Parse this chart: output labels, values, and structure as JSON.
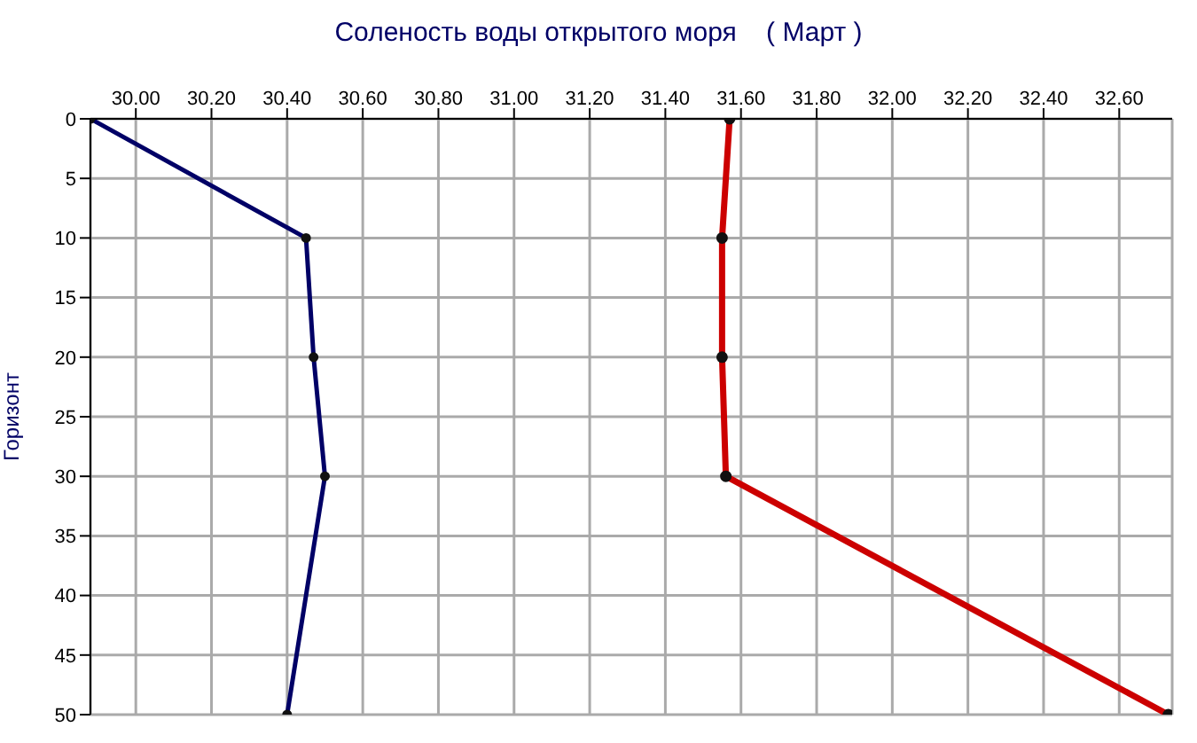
{
  "chart_data": {
    "type": "line",
    "title": "Соленость воды открытого моря    ( Март )",
    "ylabel": "Горизонт",
    "series": [
      {
        "color": "#000066",
        "x": [
          29.88,
          30.45,
          30.47,
          30.5,
          30.4
        ],
        "values": [
          0,
          10,
          20,
          30,
          50
        ]
      },
      {
        "color": "#cc0000",
        "x": [
          31.57,
          31.55,
          31.55,
          31.56,
          32.73
        ],
        "values": [
          0,
          10,
          20,
          30,
          50
        ]
      }
    ],
    "xlim": [
      29.88,
      32.74
    ],
    "xticks": [
      {
        "value": 30,
        "label": "30.00"
      },
      {
        "value": 30.2,
        "label": "30.20"
      },
      {
        "value": 30.4,
        "label": "30.40"
      },
      {
        "value": 30.6,
        "label": "30.60"
      },
      {
        "value": 30.8,
        "label": "30.80"
      },
      {
        "value": 31,
        "label": "31.00"
      },
      {
        "value": 31.2,
        "label": "31.20"
      },
      {
        "value": 31.4,
        "label": "31.40"
      },
      {
        "value": 31.6,
        "label": "31.60"
      },
      {
        "value": 31.8,
        "label": "31.80"
      },
      {
        "value": 32,
        "label": "32.00"
      },
      {
        "value": 32.2,
        "label": "32.20"
      },
      {
        "value": 32.4,
        "label": "32.40"
      },
      {
        "value": 32.6,
        "label": "32.60"
      }
    ],
    "ylim": [
      50,
      0
    ],
    "yticks": [
      0,
      5,
      10,
      15,
      20,
      25,
      30,
      35,
      40,
      45,
      50
    ],
    "grid": true,
    "marker": "circle",
    "line_style": "solid",
    "legend": false
  }
}
